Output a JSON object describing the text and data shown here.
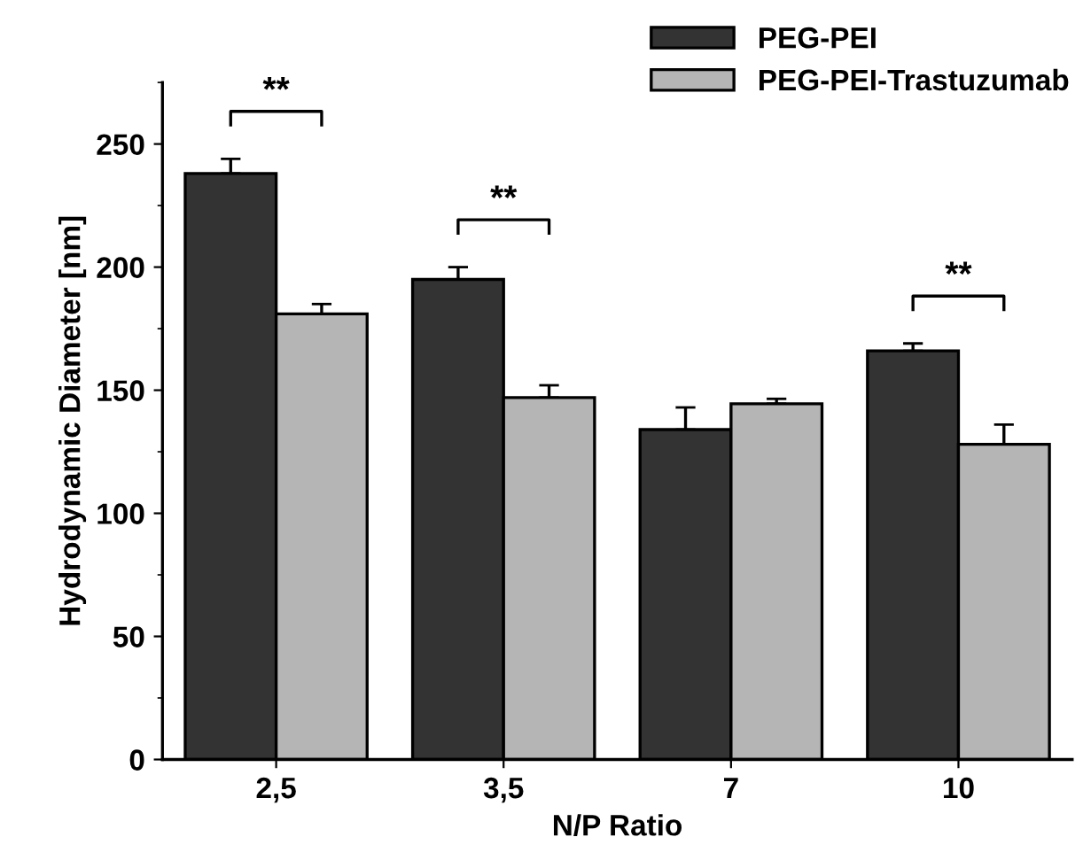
{
  "chart_data": {
    "type": "bar",
    "xlabel": "N/P Ratio",
    "ylabel": "Hydrodynamic Diameter [nm]",
    "categories": [
      "2,5",
      "3,5",
      "7",
      "10"
    ],
    "series": [
      {
        "name": "PEG-PEI",
        "color": "#333333",
        "values": [
          238,
          195,
          134,
          166
        ],
        "errors": [
          [
            238,
            244
          ],
          [
            195,
            200
          ],
          [
            134,
            143
          ],
          [
            166,
            169
          ]
        ]
      },
      {
        "name": "PEG-PEI-Trastuzumab",
        "color": "#b5b5b5",
        "values": [
          181,
          147,
          144.5,
          128
        ],
        "errors": [
          [
            181,
            185
          ],
          [
            147,
            152
          ],
          [
            144.5,
            146.5
          ],
          [
            128,
            136
          ]
        ]
      }
    ],
    "ylim": [
      0,
      275
    ],
    "yticks": [
      0,
      50,
      100,
      150,
      200,
      250
    ],
    "grid": false,
    "legend": "top right",
    "annotations": [
      "**",
      "**",
      "**"
    ]
  }
}
